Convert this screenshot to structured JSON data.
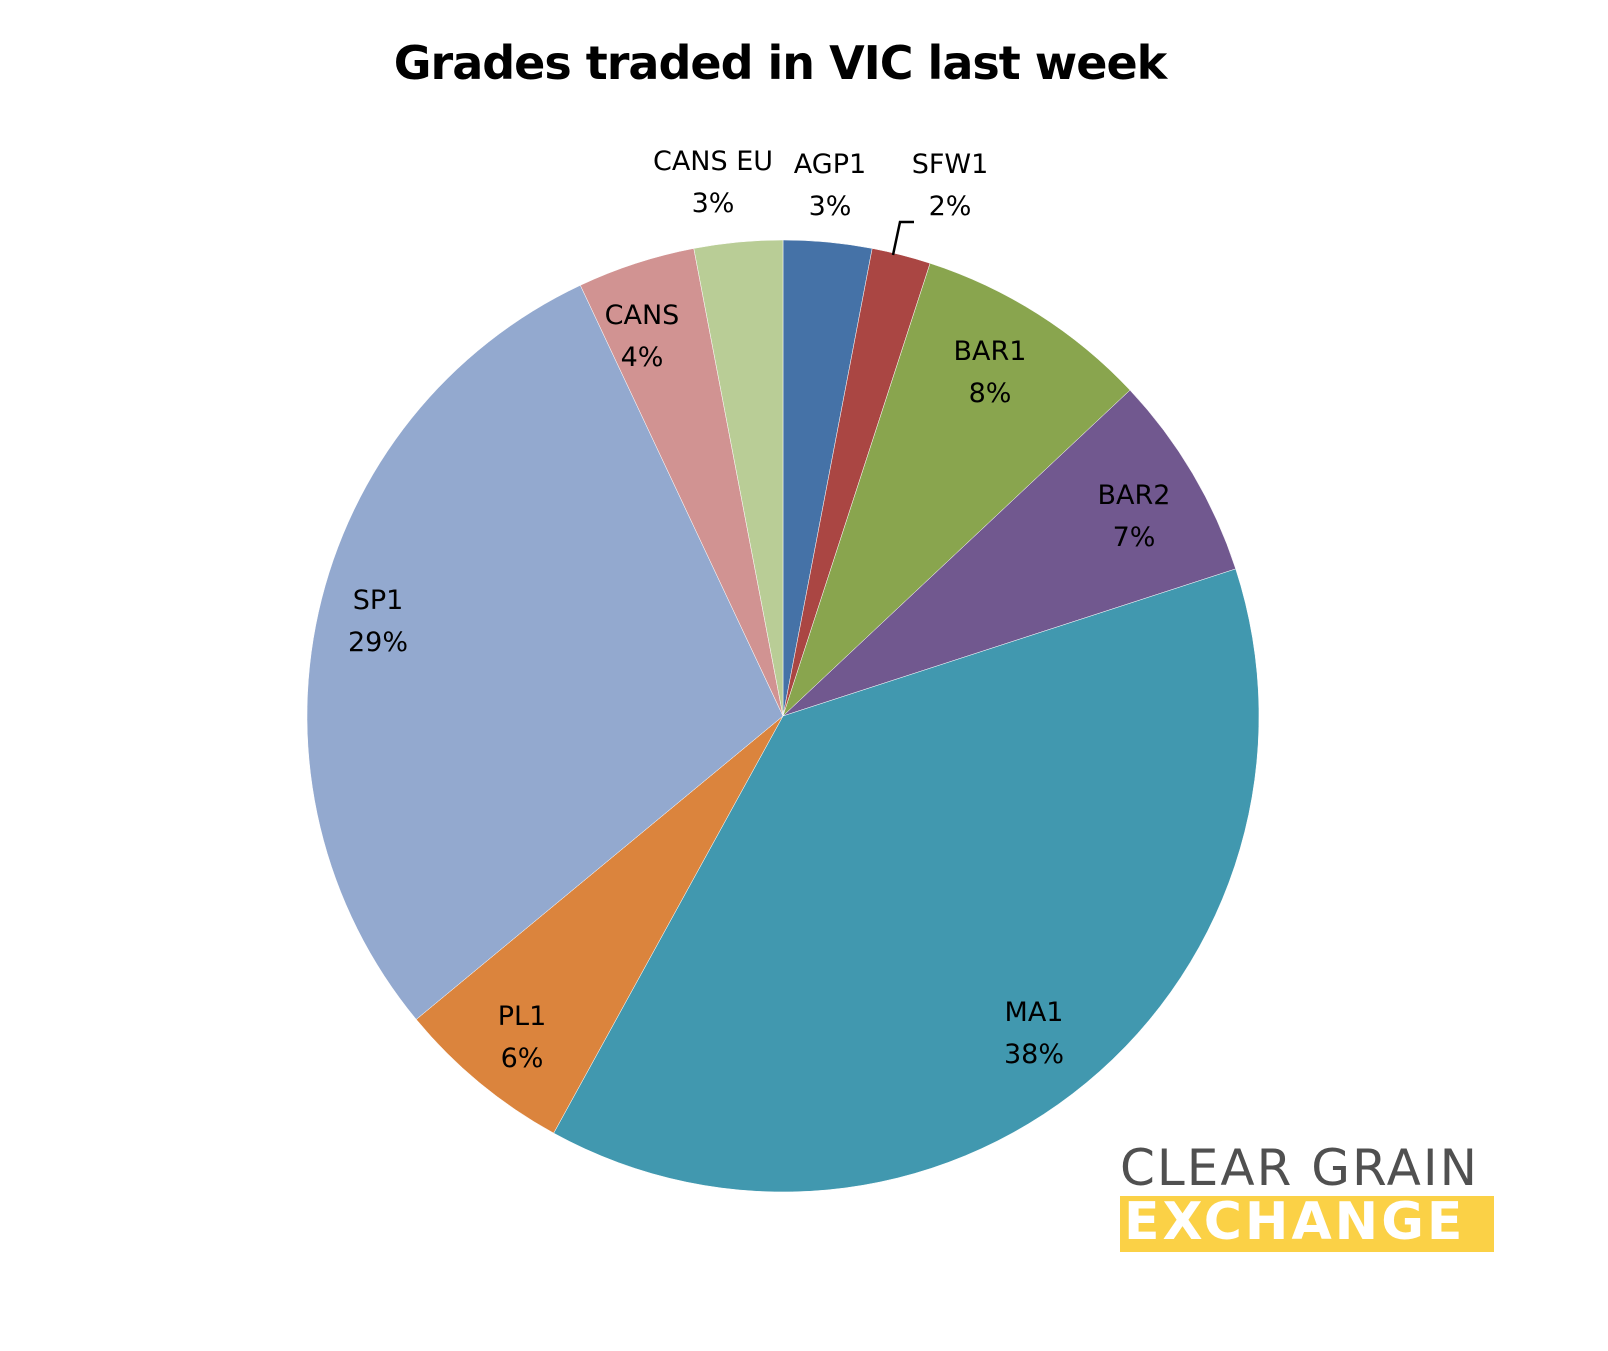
{
  "chart_data": {
    "type": "pie",
    "title": "Grades traded in VIC last week",
    "categories": [
      "AGP1",
      "SFW1",
      "BAR1",
      "BAR2",
      "MA1",
      "PL1",
      "SP1",
      "CANS",
      "CANS EU"
    ],
    "values": [
      3,
      2,
      8,
      7,
      38,
      6,
      29,
      4,
      3
    ],
    "value_labels": [
      "3%",
      "2%",
      "8%",
      "7%",
      "38%",
      "6%",
      "29%",
      "4%",
      "3%"
    ],
    "colors": [
      "#4572a7",
      "#aa4643",
      "#89a54e",
      "#71588f",
      "#4198af",
      "#db843d",
      "#93a9cf",
      "#d19392",
      "#b9cd96"
    ],
    "start_angle_deg": 0,
    "direction": "clockwise",
    "legend": "none",
    "data_labels": "category and percentage"
  },
  "labels": [
    {
      "name": "AGP1",
      "pct": "3%"
    },
    {
      "name": "SFW1",
      "pct": "2%"
    },
    {
      "name": "BAR1",
      "pct": "8%"
    },
    {
      "name": "BAR2",
      "pct": "7%"
    },
    {
      "name": "MA1",
      "pct": "38%"
    },
    {
      "name": "PL1",
      "pct": "6%"
    },
    {
      "name": "SP1",
      "pct": "29%"
    },
    {
      "name": "CANS",
      "pct": "4%"
    },
    {
      "name": "CANS EU",
      "pct": "3%"
    }
  ],
  "logo": {
    "top": "CLEAR GRAIN",
    "bottom": "EXCHANGE"
  }
}
